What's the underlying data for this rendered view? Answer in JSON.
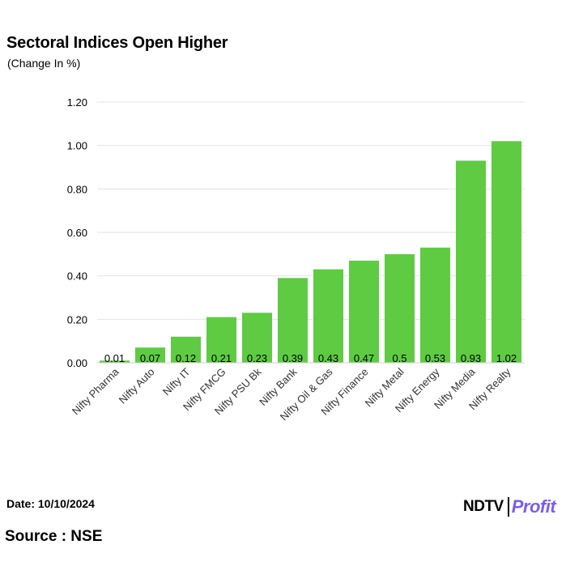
{
  "title": "Sectoral Indices Open Higher",
  "subtitle": "(Change In %)",
  "footer": {
    "date": "Date: 10/10/2024",
    "source": "Source : NSE",
    "logo_left": "NDTV",
    "logo_right": "Profit"
  },
  "colors": {
    "bar": "#5ecb43",
    "grid": "#e2e2e2",
    "text": "#000000"
  },
  "chart_data": {
    "type": "bar",
    "title": "Sectoral Indices Open Higher",
    "subtitle": "(Change In %)",
    "xlabel": "",
    "ylabel": "",
    "ylim": [
      0,
      1.2
    ],
    "yticks": [
      0,
      0.2,
      0.4,
      0.6,
      0.8,
      1.0,
      1.2
    ],
    "ytick_labels": [
      "0.00",
      "0.20",
      "0.40",
      "0.60",
      "0.80",
      "1.00",
      "1.20"
    ],
    "grid": true,
    "categories": [
      "Nifty Pharma",
      "Nifty Auto",
      "Nifty IT",
      "Nifty FMCG",
      "Nifty PSU Bk",
      "Nifty Bank",
      "Nifty Oil & Gas",
      "Nifty Finance",
      "Nifty Metal",
      "Nifty Energy",
      "Nifty Media",
      "Nifty Realty"
    ],
    "values": [
      0.01,
      0.07,
      0.12,
      0.21,
      0.23,
      0.39,
      0.43,
      0.47,
      0.5,
      0.53,
      0.93,
      1.02
    ],
    "data_labels": [
      "0.01",
      "0.07",
      "0.12",
      "0.21",
      "0.23",
      "0.39",
      "0.43",
      "0.47",
      "0.5",
      "0.53",
      "0.93",
      "1.02"
    ]
  }
}
